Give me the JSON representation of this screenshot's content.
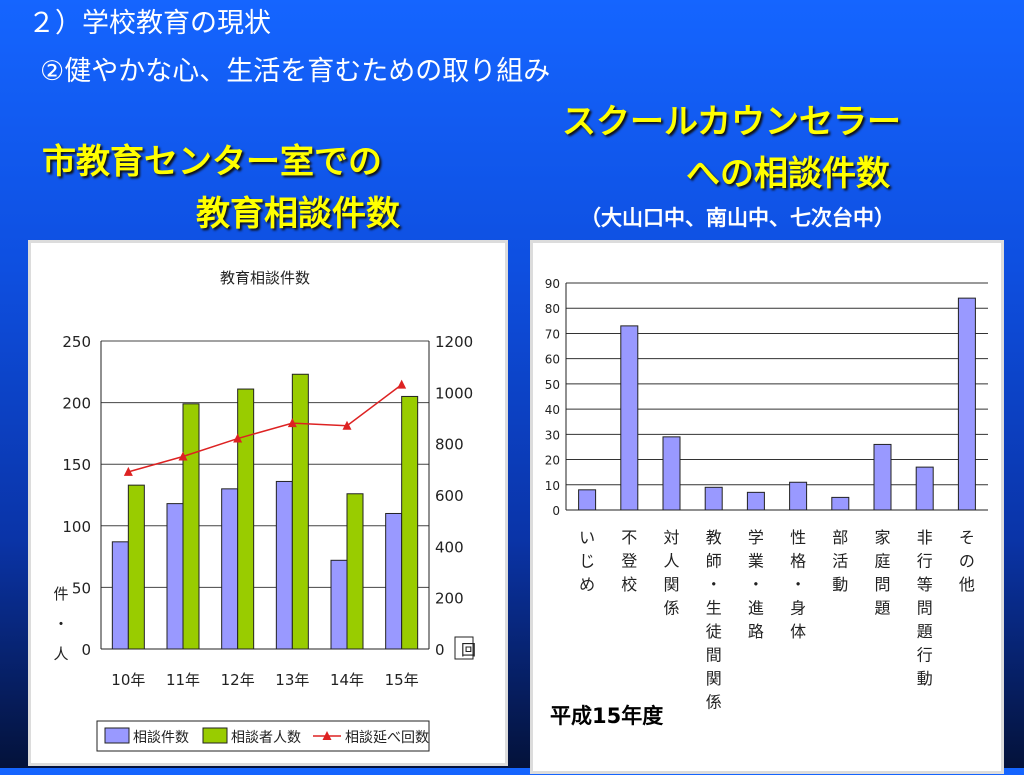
{
  "slide": {
    "title1": "２）学校教育の現状",
    "title2": "②健やかな心、生活を育むための取り組み",
    "left_heading_line1": "市教育センター室での",
    "left_heading_line2": "教育相談件数",
    "right_heading_line1": "スクールカウンセラー",
    "right_heading_line2": "への相談件数",
    "right_subheading": "（大山口中、南山中、七次台中）",
    "year_label": "平成15年度"
  },
  "chart_data": [
    {
      "type": "bar",
      "title": "教育相談件数",
      "categories": [
        "10年",
        "11年",
        "12年",
        "13年",
        "14年",
        "15年"
      ],
      "series": [
        {
          "name": "相談件数",
          "axis": "left",
          "values": [
            87,
            118,
            130,
            136,
            72,
            110
          ],
          "color": "#9999ff"
        },
        {
          "name": "相談者人数",
          "axis": "left",
          "values": [
            133,
            199,
            211,
            223,
            126,
            205
          ],
          "color": "#99cc00"
        },
        {
          "name": "相談延べ回数",
          "axis": "right",
          "type": "line",
          "values": [
            690,
            750,
            820,
            880,
            870,
            1030
          ],
          "color": "#dd2222"
        }
      ],
      "ylabel": "件・人",
      "y2label": "回",
      "ylim": [
        0,
        250
      ],
      "y2lim": [
        0,
        1200
      ],
      "yticks": [
        "0",
        "50",
        "100",
        "150",
        "200",
        "250"
      ],
      "y2ticks": [
        "0",
        "200",
        "400",
        "600",
        "800",
        "1000",
        "1200"
      ],
      "grid": true,
      "legend": "bottom"
    },
    {
      "type": "bar",
      "categories": [
        "いじめ",
        "不登校",
        "対人関係",
        "教師・生徒間関係",
        "学業・進路",
        "性格・身体",
        "部活動",
        "家庭問題",
        "非行等問題行動",
        "その他"
      ],
      "category_lines": [
        [
          "い",
          "じ",
          "め"
        ],
        [
          "不",
          "登",
          "校"
        ],
        [
          "対",
          "人",
          "関",
          "係"
        ],
        [
          "教",
          "師",
          "・",
          "生",
          "徒",
          "間",
          "関",
          "係"
        ],
        [
          "学",
          "業",
          "・",
          "進",
          "路"
        ],
        [
          "性",
          "格",
          "・",
          "身",
          "体"
        ],
        [
          "部",
          "活",
          "動"
        ],
        [
          "家",
          "庭",
          "問",
          "題"
        ],
        [
          "非",
          "行",
          "等",
          "問",
          "題",
          "行",
          "動"
        ],
        [
          "そ",
          "の",
          "他"
        ]
      ],
      "values": [
        8,
        73,
        29,
        9,
        7,
        11,
        5,
        26,
        17,
        84
      ],
      "color": "#9999ff",
      "ylim": [
        0,
        90
      ],
      "yticks": [
        "0",
        "10",
        "20",
        "30",
        "40",
        "50",
        "60",
        "70",
        "80",
        "90"
      ],
      "grid": true
    }
  ]
}
